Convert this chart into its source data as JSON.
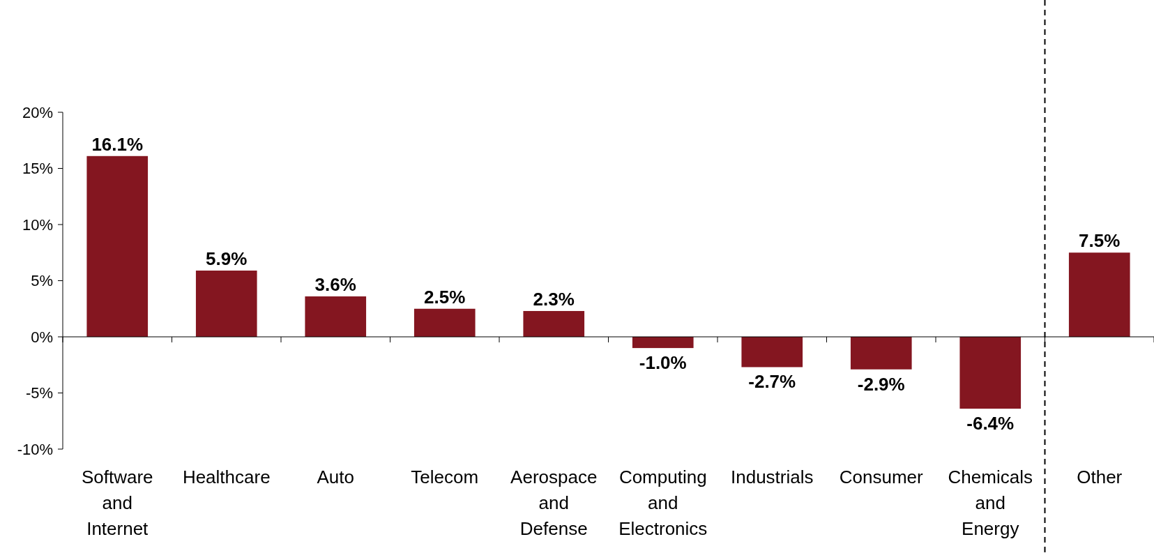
{
  "chart_data": {
    "type": "bar",
    "categories": [
      "Software and Internet",
      "Healthcare",
      "Auto",
      "Telecom",
      "Aerospace and Defense",
      "Computing and Electronics",
      "Industrials",
      "Consumer",
      "Chemicals and Energy",
      "Other"
    ],
    "values": [
      16.1,
      5.9,
      3.6,
      2.5,
      2.3,
      -1.0,
      -2.7,
      -2.9,
      -6.4,
      7.5
    ],
    "value_labels": [
      "16.1%",
      "5.9%",
      "3.6%",
      "2.5%",
      "2.3%",
      "-1.0%",
      "-2.7%",
      "-2.9%",
      "-6.4%",
      "7.5%"
    ],
    "color": "#841620",
    "ylim": [
      -10,
      20
    ],
    "yticks": [
      {
        "value": -10,
        "label": "-10%"
      },
      {
        "value": -5,
        "label": "-5%"
      },
      {
        "value": 0,
        "label": "0%"
      },
      {
        "value": 5,
        "label": "5%"
      },
      {
        "value": 10,
        "label": "10%"
      },
      {
        "value": 15,
        "label": "15%"
      },
      {
        "value": 20,
        "label": "20%"
      }
    ],
    "ref_lines": [
      {
        "axis": "x",
        "value": "Other",
        "line_style": "dashed",
        "color": "#000000"
      }
    ],
    "grid": false
  }
}
